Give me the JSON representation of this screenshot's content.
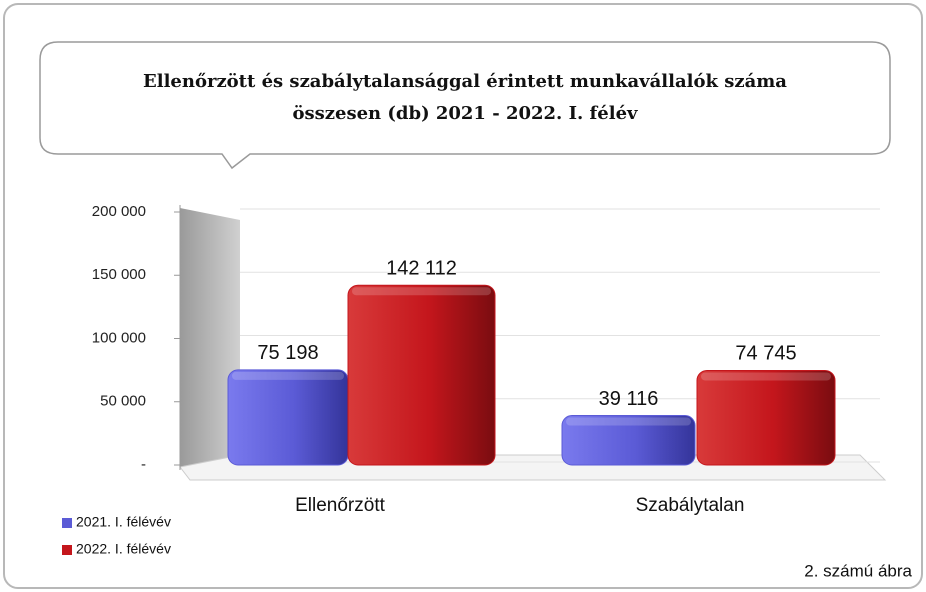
{
  "chart_data": {
    "type": "bar",
    "title": [
      "Ellenőrzött és szabálytalansággal érintett munkavállalók száma",
      "összesen (db)    2021 - 2022. I. félév"
    ],
    "categories": [
      "Ellenőrzött",
      "Szabálytalan"
    ],
    "series": [
      {
        "name": "2021. I. félévév",
        "color": "#5b5bd6",
        "values": [
          75198,
          39116
        ],
        "value_labels": [
          "75 198",
          "39 116"
        ]
      },
      {
        "name": "2022. I. félévév",
        "color": "#c4161c",
        "values": [
          142112,
          74745
        ],
        "value_labels": [
          "142 112",
          "74 745"
        ]
      }
    ],
    "ylim": [
      0,
      200000
    ],
    "yticks": [
      {
        "value": 0,
        "label": "-"
      },
      {
        "value": 50000,
        "label": "50 000"
      },
      {
        "value": 100000,
        "label": "100 000"
      },
      {
        "value": 150000,
        "label": "150 000"
      },
      {
        "value": 200000,
        "label": "200 000"
      }
    ],
    "grid": true,
    "legend": "bottom-left",
    "footnote": "2. számú ábra"
  }
}
